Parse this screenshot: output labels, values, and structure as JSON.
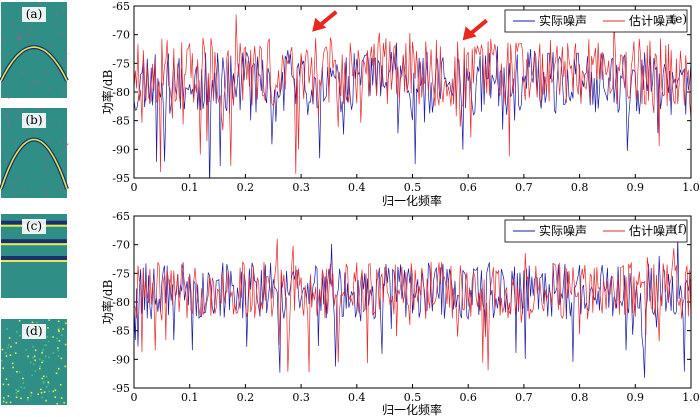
{
  "thumbnails": [
    {
      "label": "(a)",
      "pattern": "hyperbola-down"
    },
    {
      "label": "(b)",
      "pattern": "hyperbola-up"
    },
    {
      "label": "(c)",
      "pattern": "horizontal-bands"
    },
    {
      "label": "(d)",
      "pattern": "random-noise"
    }
  ],
  "colors": {
    "actual": "#1a1aa6",
    "estimated": "#e8282b",
    "arrow": "#e8281e",
    "thumb_bg": "#2f8f86"
  },
  "chart_data": [
    {
      "type": "line",
      "panel_label": "(e)",
      "xlabel": "归一化频率",
      "ylabel": "功率/dB",
      "xlim": [
        0,
        1.0
      ],
      "ylim": [
        -95,
        -65
      ],
      "xticks": [
        "0",
        "0.1",
        "0.2",
        "0.3",
        "0.4",
        "0.5",
        "0.6",
        "0.7",
        "0.8",
        "0.9",
        "1.0"
      ],
      "yticks": [
        "-65",
        "-70",
        "-75",
        "-80",
        "-85",
        "-90",
        "-95"
      ],
      "legend_position": "top-right",
      "series": [
        {
          "name": "实际噪声",
          "color": "#1a1aa6",
          "mean": -78.5,
          "spread": 5.5,
          "seed": 11
        },
        {
          "name": "估计噪声",
          "color": "#e8282b",
          "mean": -76.5,
          "spread": 6.0,
          "seed": 23
        }
      ],
      "annotations": [
        {
          "type": "arrow",
          "target_x": 0.32,
          "target_y": -69.5
        },
        {
          "type": "arrow",
          "target_x": 0.59,
          "target_y": -71.0
        }
      ]
    },
    {
      "type": "line",
      "panel_label": "(f)",
      "xlabel": "归一化频率",
      "ylabel": "功率/dB",
      "xlim": [
        0,
        1.0
      ],
      "ylim": [
        -95,
        -65
      ],
      "xticks": [
        "0",
        "0.1",
        "0.2",
        "0.3",
        "0.4",
        "0.5",
        "0.6",
        "0.7",
        "0.8",
        "0.9",
        "1.0"
      ],
      "yticks": [
        "-65",
        "-70",
        "-75",
        "-80",
        "-85",
        "-90",
        "-95"
      ],
      "legend_position": "top-right",
      "series": [
        {
          "name": "实际噪声",
          "color": "#1a1aa6",
          "mean": -78.0,
          "spread": 5.0,
          "seed": 37
        },
        {
          "name": "估计噪声",
          "color": "#e8282b",
          "mean": -78.0,
          "spread": 5.0,
          "seed": 41
        }
      ],
      "annotations": []
    }
  ]
}
